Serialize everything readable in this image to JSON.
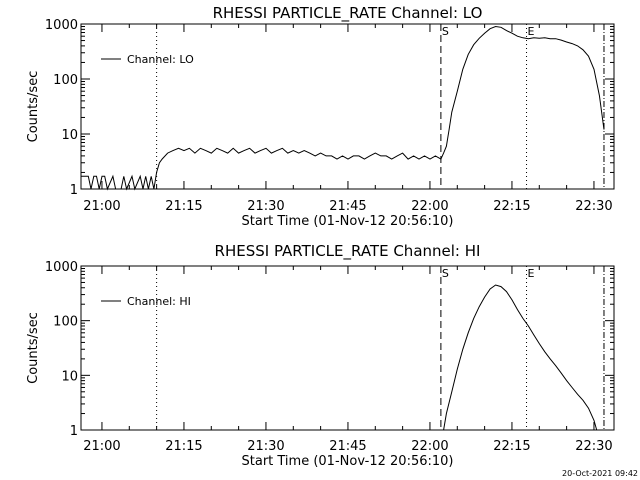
{
  "footer": {
    "timestamp": "20-Oct-2021 09:42"
  },
  "chart_data": [
    {
      "type": "line",
      "title": "RHESSI PARTICLE_RATE Channel: LO",
      "xlabel": "Start Time (01-Nov-12 20:56:10)",
      "ylabel": "Counts/sec",
      "yscale": "log",
      "xlim": [
        "20:56:10",
        "22:33:40"
      ],
      "ylim": [
        1,
        1000
      ],
      "x_ticks": [
        "21:00",
        "21:15",
        "21:30",
        "21:45",
        "22:00",
        "22:15",
        "22:30"
      ],
      "y_ticks": [
        "1",
        "10",
        "100",
        "1000"
      ],
      "legend": {
        "entries": [
          "Channel: LO"
        ],
        "placement": "top-left"
      },
      "markers": [
        {
          "time": "21:10:00",
          "label": "",
          "style": "dotted"
        },
        {
          "time": "22:02:00",
          "label": "S",
          "style": "dashed"
        },
        {
          "time": "22:17:40",
          "label": "E",
          "style": "dotted"
        },
        {
          "time": "22:31:50",
          "label": "",
          "style": "dashdot"
        }
      ],
      "series": [
        {
          "name": "Channel: LO",
          "points": [
            [
              "20:56:10",
              1.7
            ],
            [
              "20:57:30",
              1.7
            ],
            [
              "20:58:00",
              1
            ],
            [
              "20:58:30",
              1.7
            ],
            [
              "20:59:00",
              1.7
            ],
            [
              "20:59:30",
              1
            ],
            [
              "21:00:00",
              1.7
            ],
            [
              "21:00:30",
              1.7
            ],
            [
              "21:01:00",
              1
            ],
            [
              "21:02:00",
              1.7
            ],
            [
              "21:02:30",
              1
            ],
            [
              "21:03:30",
              1
            ],
            [
              "21:04:00",
              1.7
            ],
            [
              "21:04:30",
              1
            ],
            [
              "21:05:30",
              1.7
            ],
            [
              "21:06:00",
              1
            ],
            [
              "21:07:00",
              1.7
            ],
            [
              "21:07:30",
              1
            ],
            [
              "21:08:00",
              1.7
            ],
            [
              "21:08:30",
              1
            ],
            [
              "21:09:00",
              1.7
            ],
            [
              "21:09:30",
              1
            ],
            [
              "21:10:00",
              2
            ],
            [
              "21:10:30",
              3
            ],
            [
              "21:11:00",
              3.5
            ],
            [
              "21:12:00",
              4.5
            ],
            [
              "21:13:00",
              5
            ],
            [
              "21:14:00",
              5.5
            ],
            [
              "21:15:00",
              5
            ],
            [
              "21:16:00",
              5.5
            ],
            [
              "21:17:00",
              4.5
            ],
            [
              "21:18:00",
              5.5
            ],
            [
              "21:19:00",
              5
            ],
            [
              "21:20:00",
              4.5
            ],
            [
              "21:21:00",
              5.5
            ],
            [
              "21:22:00",
              5
            ],
            [
              "21:23:00",
              4.5
            ],
            [
              "21:24:00",
              5.5
            ],
            [
              "21:25:00",
              4.5
            ],
            [
              "21:26:00",
              5
            ],
            [
              "21:27:00",
              5.5
            ],
            [
              "21:28:00",
              4.5
            ],
            [
              "21:29:00",
              5
            ],
            [
              "21:30:00",
              5.5
            ],
            [
              "21:31:00",
              4.5
            ],
            [
              "21:32:00",
              5
            ],
            [
              "21:33:00",
              5.5
            ],
            [
              "21:34:00",
              4.5
            ],
            [
              "21:35:00",
              5
            ],
            [
              "21:36:00",
              4.5
            ],
            [
              "21:37:00",
              5
            ],
            [
              "21:38:00",
              4.5
            ],
            [
              "21:39:00",
              4
            ],
            [
              "21:40:00",
              4.5
            ],
            [
              "21:41:00",
              4
            ],
            [
              "21:42:00",
              4
            ],
            [
              "21:43:00",
              3.5
            ],
            [
              "21:44:00",
              4
            ],
            [
              "21:45:00",
              3.5
            ],
            [
              "21:46:00",
              4
            ],
            [
              "21:47:00",
              4
            ],
            [
              "21:48:00",
              3.5
            ],
            [
              "21:49:00",
              4
            ],
            [
              "21:50:00",
              4.5
            ],
            [
              "21:51:00",
              4
            ],
            [
              "21:52:00",
              4
            ],
            [
              "21:53:00",
              3.5
            ],
            [
              "21:54:00",
              4
            ],
            [
              "21:55:00",
              4.5
            ],
            [
              "21:56:00",
              3.5
            ],
            [
              "21:57:00",
              4
            ],
            [
              "21:58:00",
              3.5
            ],
            [
              "21:59:00",
              4
            ],
            [
              "22:00:00",
              3.5
            ],
            [
              "22:01:00",
              4
            ],
            [
              "22:02:00",
              3.5
            ],
            [
              "22:02:30",
              4.5
            ],
            [
              "22:03:00",
              6
            ],
            [
              "22:03:30",
              12
            ],
            [
              "22:04:00",
              25
            ],
            [
              "22:05:00",
              60
            ],
            [
              "22:06:00",
              150
            ],
            [
              "22:07:00",
              280
            ],
            [
              "22:08:00",
              420
            ],
            [
              "22:09:00",
              550
            ],
            [
              "22:10:00",
              680
            ],
            [
              "22:11:00",
              820
            ],
            [
              "22:12:00",
              900
            ],
            [
              "22:13:00",
              870
            ],
            [
              "22:14:00",
              760
            ],
            [
              "22:15:00",
              680
            ],
            [
              "22:16:00",
              600
            ],
            [
              "22:17:00",
              560
            ],
            [
              "22:18:00",
              540
            ],
            [
              "22:19:00",
              560
            ],
            [
              "22:20:00",
              550
            ],
            [
              "22:21:00",
              560
            ],
            [
              "22:22:00",
              540
            ],
            [
              "22:23:00",
              540
            ],
            [
              "22:24:00",
              510
            ],
            [
              "22:25:00",
              470
            ],
            [
              "22:26:00",
              440
            ],
            [
              "22:27:00",
              400
            ],
            [
              "22:28:00",
              340
            ],
            [
              "22:29:00",
              260
            ],
            [
              "22:30:00",
              150
            ],
            [
              "22:31:00",
              50
            ],
            [
              "22:31:50",
              12
            ]
          ]
        }
      ]
    },
    {
      "type": "line",
      "title": "RHESSI PARTICLE_RATE Channel: HI",
      "xlabel": "Start Time (01-Nov-12 20:56:10)",
      "ylabel": "Counts/sec",
      "yscale": "log",
      "xlim": [
        "20:56:10",
        "22:33:40"
      ],
      "ylim": [
        1,
        1000
      ],
      "x_ticks": [
        "21:00",
        "21:15",
        "21:30",
        "21:45",
        "22:00",
        "22:15",
        "22:30"
      ],
      "y_ticks": [
        "1",
        "10",
        "100",
        "1000"
      ],
      "legend": {
        "entries": [
          "Channel: HI"
        ],
        "placement": "top-left"
      },
      "markers": [
        {
          "time": "21:10:00",
          "label": "",
          "style": "dotted"
        },
        {
          "time": "22:02:00",
          "label": "S",
          "style": "dashed"
        },
        {
          "time": "22:17:40",
          "label": "E",
          "style": "dotted"
        },
        {
          "time": "22:31:50",
          "label": "",
          "style": "dashdot"
        }
      ],
      "series": [
        {
          "name": "Channel: HI",
          "points": [
            [
              "22:02:30",
              1
            ],
            [
              "22:03:00",
              2
            ],
            [
              "22:04:00",
              5
            ],
            [
              "22:05:00",
              13
            ],
            [
              "22:06:00",
              30
            ],
            [
              "22:07:00",
              60
            ],
            [
              "22:08:00",
              110
            ],
            [
              "22:09:00",
              180
            ],
            [
              "22:10:00",
              270
            ],
            [
              "22:11:00",
              380
            ],
            [
              "22:12:00",
              450
            ],
            [
              "22:13:00",
              420
            ],
            [
              "22:14:00",
              340
            ],
            [
              "22:15:00",
              240
            ],
            [
              "22:16:00",
              160
            ],
            [
              "22:17:00",
              110
            ],
            [
              "22:18:00",
              80
            ],
            [
              "22:19:00",
              55
            ],
            [
              "22:20:00",
              38
            ],
            [
              "22:21:00",
              27
            ],
            [
              "22:22:00",
              20
            ],
            [
              "22:23:00",
              15
            ],
            [
              "22:24:00",
              11
            ],
            [
              "22:25:00",
              8
            ],
            [
              "22:26:00",
              6
            ],
            [
              "22:27:00",
              4.5
            ],
            [
              "22:28:00",
              3.5
            ],
            [
              "22:29:00",
              2.5
            ],
            [
              "22:30:00",
              1.5
            ],
            [
              "22:30:30",
              1
            ]
          ]
        }
      ]
    }
  ]
}
